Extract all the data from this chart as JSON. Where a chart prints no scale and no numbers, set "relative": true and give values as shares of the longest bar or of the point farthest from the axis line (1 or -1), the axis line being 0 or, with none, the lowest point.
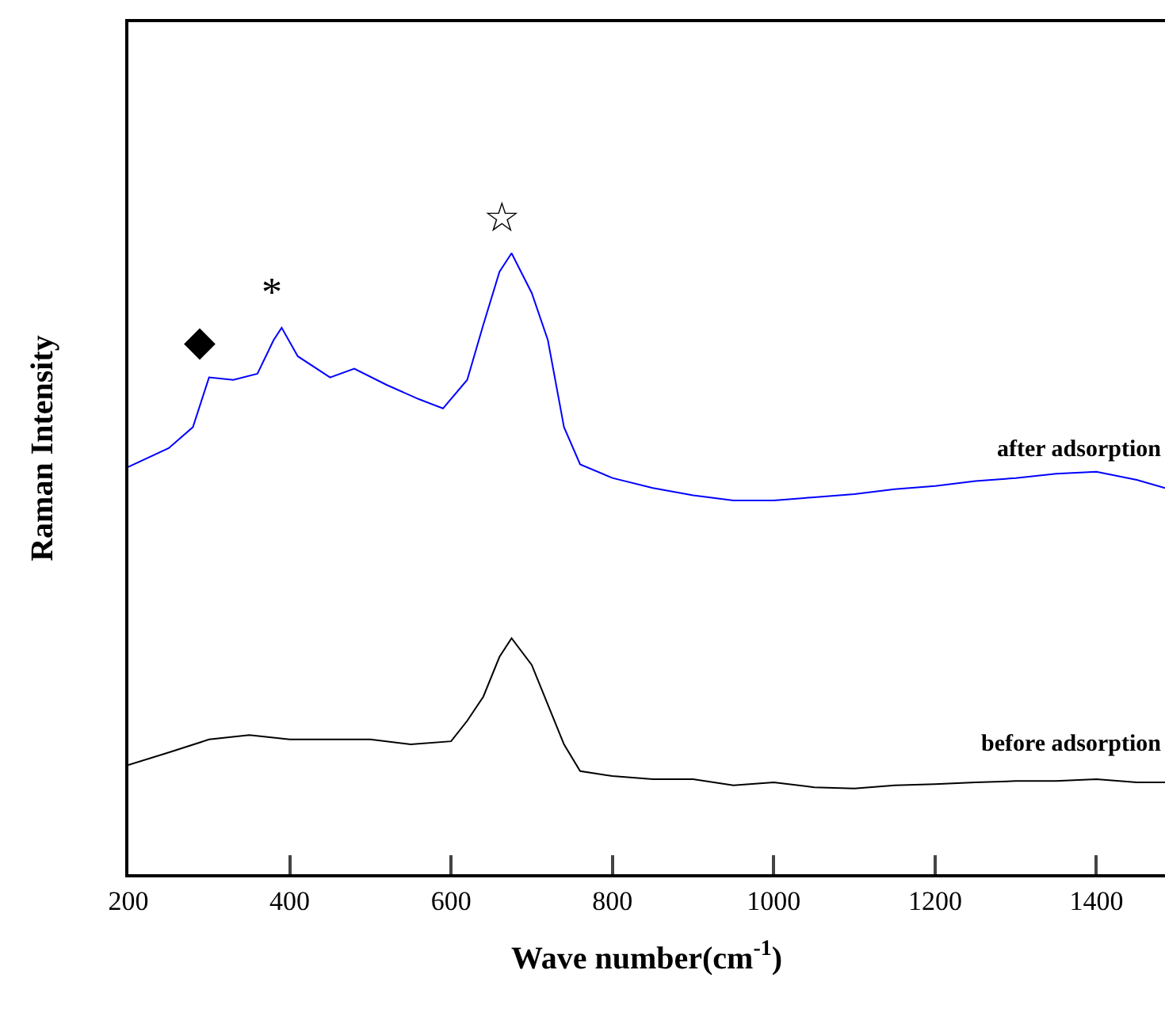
{
  "chart_data": {
    "type": "line",
    "relative": true,
    "xlabel": "Wave number(cm$^{-1}$)",
    "ylabel": "Raman Intensity",
    "xlim": [
      200,
      1485
    ],
    "xticks": [
      200,
      400,
      600,
      800,
      1000,
      1200,
      1400
    ],
    "x": [
      200,
      250,
      280,
      300,
      330,
      360,
      380,
      390,
      410,
      450,
      480,
      520,
      560,
      590,
      620,
      640,
      660,
      675,
      700,
      720,
      740,
      760,
      800,
      850,
      900,
      950,
      1000,
      1050,
      1100,
      1150,
      1200,
      1250,
      1300,
      1350,
      1400,
      1450,
      1485
    ],
    "series": [
      {
        "name": "after adsorption",
        "color": "#0000ff",
        "values": [
          0.656,
          0.686,
          0.72,
          0.8,
          0.796,
          0.806,
          0.86,
          0.88,
          0.834,
          0.8,
          0.814,
          0.788,
          0.765,
          0.75,
          0.796,
          0.885,
          0.97,
          1.0,
          0.936,
          0.86,
          0.72,
          0.66,
          0.638,
          0.622,
          0.61,
          0.602,
          0.602,
          0.607,
          0.612,
          0.62,
          0.625,
          0.633,
          0.638,
          0.645,
          0.648,
          0.635,
          0.622
        ]
      },
      {
        "name": "before adsorption",
        "color": "#000000",
        "x": [
          200,
          250,
          300,
          350,
          400,
          450,
          500,
          550,
          600,
          620,
          640,
          660,
          675,
          700,
          720,
          740,
          760,
          800,
          850,
          900,
          950,
          1000,
          1050,
          1100,
          1150,
          1200,
          1250,
          1300,
          1350,
          1400,
          1450,
          1485
        ],
        "values": [
          0.176,
          0.196,
          0.217,
          0.224,
          0.217,
          0.217,
          0.217,
          0.209,
          0.214,
          0.247,
          0.286,
          0.35,
          0.38,
          0.337,
          0.273,
          0.209,
          0.166,
          0.158,
          0.153,
          0.153,
          0.143,
          0.148,
          0.14,
          0.138,
          0.143,
          0.145,
          0.148,
          0.15,
          0.15,
          0.153,
          0.148,
          0.148
        ]
      }
    ],
    "annotations": [
      {
        "text": "◆",
        "x": 300,
        "y": 0.8
      },
      {
        "text": "*",
        "x": 390,
        "y": 0.88
      },
      {
        "text": "☆",
        "x": 675,
        "y": 1.0
      }
    ],
    "legend": false,
    "grid": false,
    "marker": "none",
    "line_style": "solid"
  }
}
